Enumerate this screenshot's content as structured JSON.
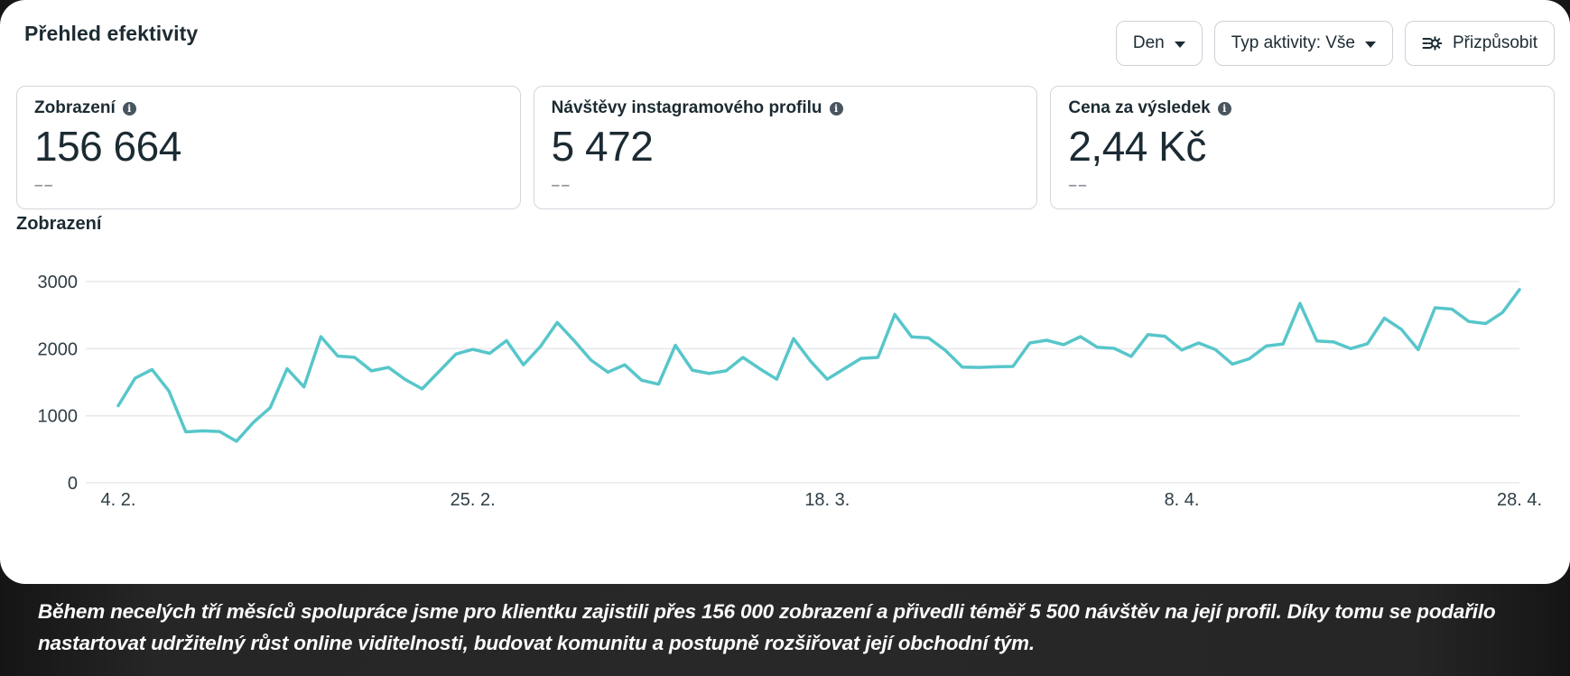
{
  "page": {
    "title": "Přehled efektivity",
    "controls": {
      "time_breakdown": {
        "label": "Den"
      },
      "activity_type": {
        "label": "Typ aktivity: Vše"
      },
      "customize": {
        "label": "Přizpůsobit"
      }
    }
  },
  "metrics": [
    {
      "label": "Zobrazení",
      "value": "156 664",
      "sub": "––",
      "info_icon": "info-icon"
    },
    {
      "label": "Návštěvy instagramového profilu",
      "value": "5 472",
      "sub": "––",
      "info_icon": "info-icon"
    },
    {
      "label": "Cena za výsledek",
      "value": "2,44 Kč",
      "sub": "––",
      "info_icon": "info-icon"
    }
  ],
  "chart_data": {
    "type": "line",
    "title": "Zobrazení",
    "series": [
      {
        "name": "Zobrazení",
        "values": [
          1150,
          1560,
          1690,
          1370,
          760,
          775,
          765,
          620,
          900,
          1120,
          1700,
          1430,
          2180,
          1890,
          1870,
          1670,
          1720,
          1540,
          1400,
          1660,
          1920,
          1990,
          1930,
          2120,
          1760,
          2030,
          2390,
          2120,
          1830,
          1650,
          1760,
          1530,
          1470,
          2050,
          1680,
          1630,
          1670,
          1870,
          1700,
          1545,
          2150,
          1815,
          1545,
          1700,
          1855,
          1870,
          2510,
          2175,
          2160,
          1975,
          1725,
          1720,
          1730,
          1735,
          2085,
          2125,
          2060,
          2180,
          2020,
          2005,
          1885,
          2210,
          2185,
          1980,
          2085,
          1985,
          1770,
          1850,
          2040,
          2070,
          2675,
          2115,
          2100,
          2000,
          2075,
          2455,
          2290,
          1985,
          2610,
          2590,
          2405,
          2375,
          2540,
          2880
        ]
      }
    ],
    "x_tick_labels": [
      "4. 2.",
      "25. 2.",
      "18. 3.",
      "8. 4.",
      "28. 4."
    ],
    "x_tick_indices": [
      0,
      21,
      42,
      63,
      83
    ],
    "y_ticks": [
      0,
      1000,
      2000,
      3000
    ],
    "ylim": [
      0,
      3000
    ],
    "grid": true,
    "legend": "none",
    "line_color": "#57c6ca",
    "grid_color": "#e7e9ec",
    "tick_label_color": "#2f3e46"
  },
  "quote": {
    "lines": [
      "Během necelých tří měsíců spolupráce jsme pro klientku zajistili přes 156 000 zobrazení a přivedli téměř 5 500 návštěv na její profil. Díky tomu se podařilo",
      "nastartovat udržitelný růst online viditelnosti, budovat komunitu a postupně rozšiřovat její obchodní tým."
    ]
  },
  "colors": {
    "accent_line": "#57c6ca",
    "text_dark": "#1c2b33",
    "page_background": "#262626",
    "panel_background": "#ffffff"
  }
}
